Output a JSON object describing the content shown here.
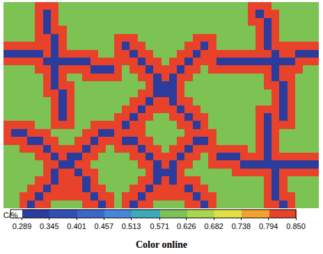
{
  "chart_data": {
    "type": "heatmap",
    "xlim": [
      -0.5,
      39.5
    ],
    "ylim": [
      25.5,
      -0.5
    ],
    "tick_labels": false,
    "cells": [
      [
        0.6,
        0.6,
        0.6,
        0.6,
        0.85,
        0.85,
        0.85,
        0.6,
        0.6,
        0.6,
        0.6,
        0.6,
        0.6,
        0.6,
        0.6,
        0.6,
        0.6,
        0.6,
        0.6,
        0.6,
        0.6,
        0.6,
        0.6,
        0.6,
        0.6,
        0.6,
        0.6,
        0.6,
        0.6,
        0.6,
        0.6,
        0.85,
        0.85,
        0.85,
        0.6,
        0.6,
        0.6,
        0.6,
        0.6,
        0.6
      ],
      [
        0.6,
        0.6,
        0.6,
        0.6,
        0.85,
        0.29,
        0.85,
        0.6,
        0.6,
        0.6,
        0.6,
        0.6,
        0.6,
        0.6,
        0.6,
        0.6,
        0.6,
        0.6,
        0.6,
        0.6,
        0.6,
        0.6,
        0.6,
        0.6,
        0.6,
        0.6,
        0.6,
        0.6,
        0.6,
        0.6,
        0.6,
        0.85,
        0.29,
        0.85,
        0.85,
        0.6,
        0.6,
        0.6,
        0.6,
        0.6
      ],
      [
        0.6,
        0.6,
        0.6,
        0.6,
        0.85,
        0.29,
        0.85,
        0.6,
        0.6,
        0.6,
        0.6,
        0.6,
        0.6,
        0.6,
        0.6,
        0.6,
        0.6,
        0.6,
        0.6,
        0.6,
        0.6,
        0.6,
        0.6,
        0.6,
        0.6,
        0.6,
        0.6,
        0.6,
        0.6,
        0.6,
        0.6,
        0.85,
        0.85,
        0.29,
        0.85,
        0.6,
        0.6,
        0.6,
        0.6,
        0.6
      ],
      [
        0.6,
        0.6,
        0.6,
        0.6,
        0.85,
        0.29,
        0.85,
        0.85,
        0.6,
        0.6,
        0.6,
        0.6,
        0.6,
        0.6,
        0.6,
        0.6,
        0.6,
        0.6,
        0.6,
        0.6,
        0.6,
        0.6,
        0.6,
        0.6,
        0.6,
        0.6,
        0.6,
        0.6,
        0.6,
        0.6,
        0.6,
        0.6,
        0.85,
        0.29,
        0.85,
        0.6,
        0.6,
        0.6,
        0.6,
        0.6
      ],
      [
        0.6,
        0.6,
        0.6,
        0.6,
        0.85,
        0.85,
        0.29,
        0.85,
        0.6,
        0.6,
        0.6,
        0.6,
        0.6,
        0.6,
        0.85,
        0.85,
        0.85,
        0.6,
        0.6,
        0.6,
        0.6,
        0.6,
        0.6,
        0.6,
        0.85,
        0.85,
        0.85,
        0.6,
        0.6,
        0.6,
        0.6,
        0.6,
        0.85,
        0.29,
        0.85,
        0.6,
        0.6,
        0.6,
        0.6,
        0.6
      ],
      [
        0.85,
        0.85,
        0.85,
        0.85,
        0.85,
        0.85,
        0.29,
        0.85,
        0.6,
        0.6,
        0.6,
        0.6,
        0.6,
        0.6,
        0.85,
        0.29,
        0.85,
        0.85,
        0.6,
        0.6,
        0.6,
        0.6,
        0.6,
        0.85,
        0.85,
        0.29,
        0.85,
        0.6,
        0.6,
        0.6,
        0.6,
        0.6,
        0.85,
        0.29,
        0.85,
        0.85,
        0.85,
        0.85,
        0.85,
        0.85
      ],
      [
        0.29,
        0.29,
        0.29,
        0.29,
        0.29,
        0.85,
        0.29,
        0.85,
        0.85,
        0.85,
        0.85,
        0.85,
        0.6,
        0.6,
        0.85,
        0.85,
        0.29,
        0.85,
        0.85,
        0.6,
        0.6,
        0.6,
        0.85,
        0.85,
        0.29,
        0.85,
        0.85,
        0.85,
        0.85,
        0.85,
        0.85,
        0.85,
        0.85,
        0.85,
        0.29,
        0.85,
        0.85,
        0.29,
        0.29,
        0.29
      ],
      [
        0.85,
        0.85,
        0.85,
        0.85,
        0.85,
        0.29,
        0.29,
        0.29,
        0.29,
        0.29,
        0.29,
        0.85,
        0.85,
        0.85,
        0.85,
        0.85,
        0.85,
        0.29,
        0.85,
        0.85,
        0.6,
        0.85,
        0.85,
        0.29,
        0.85,
        0.85,
        0.85,
        0.29,
        0.29,
        0.29,
        0.29,
        0.29,
        0.29,
        0.29,
        0.29,
        0.29,
        0.29,
        0.85,
        0.85,
        0.85
      ],
      [
        0.6,
        0.6,
        0.6,
        0.6,
        0.85,
        0.85,
        0.29,
        0.85,
        0.85,
        0.85,
        0.85,
        0.29,
        0.29,
        0.29,
        0.85,
        0.6,
        0.85,
        0.85,
        0.29,
        0.85,
        0.85,
        0.85,
        0.29,
        0.85,
        0.85,
        0.6,
        0.85,
        0.85,
        0.85,
        0.85,
        0.85,
        0.85,
        0.85,
        0.85,
        0.29,
        0.85,
        0.85,
        0.85,
        0.6,
        0.6
      ],
      [
        0.6,
        0.6,
        0.6,
        0.6,
        0.6,
        0.85,
        0.29,
        0.85,
        0.6,
        0.6,
        0.85,
        0.85,
        0.85,
        0.85,
        0.85,
        0.6,
        0.6,
        0.85,
        0.85,
        0.29,
        0.85,
        0.29,
        0.85,
        0.85,
        0.6,
        0.6,
        0.6,
        0.6,
        0.6,
        0.6,
        0.6,
        0.6,
        0.6,
        0.85,
        0.29,
        0.85,
        0.85,
        0.6,
        0.6,
        0.6
      ],
      [
        0.6,
        0.6,
        0.6,
        0.6,
        0.6,
        0.85,
        0.29,
        0.85,
        0.85,
        0.6,
        0.6,
        0.6,
        0.6,
        0.6,
        0.6,
        0.6,
        0.6,
        0.6,
        0.85,
        0.29,
        0.29,
        0.29,
        0.85,
        0.6,
        0.6,
        0.6,
        0.6,
        0.6,
        0.6,
        0.6,
        0.6,
        0.6,
        0.6,
        0.85,
        0.85,
        0.29,
        0.85,
        0.6,
        0.6,
        0.6
      ],
      [
        0.6,
        0.6,
        0.6,
        0.6,
        0.6,
        0.85,
        0.85,
        0.29,
        0.85,
        0.6,
        0.6,
        0.6,
        0.6,
        0.6,
        0.6,
        0.6,
        0.6,
        0.85,
        0.85,
        0.29,
        0.29,
        0.29,
        0.85,
        0.6,
        0.6,
        0.6,
        0.6,
        0.6,
        0.6,
        0.6,
        0.6,
        0.6,
        0.6,
        0.6,
        0.85,
        0.29,
        0.85,
        0.6,
        0.6,
        0.6
      ],
      [
        0.6,
        0.6,
        0.6,
        0.6,
        0.6,
        0.6,
        0.85,
        0.29,
        0.85,
        0.6,
        0.6,
        0.6,
        0.6,
        0.6,
        0.6,
        0.6,
        0.85,
        0.85,
        0.29,
        0.85,
        0.85,
        0.29,
        0.85,
        0.85,
        0.6,
        0.6,
        0.6,
        0.6,
        0.6,
        0.6,
        0.6,
        0.6,
        0.6,
        0.6,
        0.85,
        0.29,
        0.85,
        0.6,
        0.6,
        0.6
      ],
      [
        0.6,
        0.6,
        0.6,
        0.6,
        0.6,
        0.6,
        0.85,
        0.29,
        0.85,
        0.6,
        0.6,
        0.6,
        0.6,
        0.6,
        0.6,
        0.85,
        0.85,
        0.29,
        0.85,
        0.85,
        0.85,
        0.85,
        0.29,
        0.85,
        0.85,
        0.6,
        0.6,
        0.6,
        0.6,
        0.6,
        0.6,
        0.6,
        0.85,
        0.85,
        0.85,
        0.29,
        0.85,
        0.6,
        0.6,
        0.6
      ],
      [
        0.6,
        0.6,
        0.6,
        0.6,
        0.6,
        0.6,
        0.85,
        0.29,
        0.85,
        0.6,
        0.6,
        0.6,
        0.6,
        0.6,
        0.85,
        0.85,
        0.29,
        0.85,
        0.85,
        0.6,
        0.6,
        0.85,
        0.85,
        0.29,
        0.85,
        0.85,
        0.6,
        0.6,
        0.6,
        0.6,
        0.6,
        0.6,
        0.85,
        0.29,
        0.85,
        0.29,
        0.85,
        0.6,
        0.6,
        0.6
      ],
      [
        0.85,
        0.85,
        0.85,
        0.85,
        0.6,
        0.6,
        0.85,
        0.85,
        0.85,
        0.6,
        0.6,
        0.85,
        0.85,
        0.85,
        0.85,
        0.29,
        0.85,
        0.85,
        0.6,
        0.6,
        0.6,
        0.6,
        0.85,
        0.85,
        0.29,
        0.85,
        0.6,
        0.6,
        0.6,
        0.6,
        0.6,
        0.6,
        0.85,
        0.29,
        0.85,
        0.85,
        0.85,
        0.6,
        0.6,
        0.6
      ],
      [
        0.85,
        0.29,
        0.29,
        0.85,
        0.85,
        0.85,
        0.6,
        0.6,
        0.6,
        0.6,
        0.85,
        0.85,
        0.29,
        0.29,
        0.85,
        0.85,
        0.85,
        0.85,
        0.6,
        0.6,
        0.6,
        0.6,
        0.6,
        0.85,
        0.85,
        0.85,
        0.85,
        0.6,
        0.6,
        0.6,
        0.6,
        0.6,
        0.85,
        0.29,
        0.85,
        0.6,
        0.6,
        0.6,
        0.6,
        0.6
      ],
      [
        0.85,
        0.85,
        0.85,
        0.29,
        0.29,
        0.85,
        0.85,
        0.6,
        0.6,
        0.85,
        0.85,
        0.29,
        0.85,
        0.85,
        0.85,
        0.29,
        0.29,
        0.85,
        0.85,
        0.6,
        0.6,
        0.6,
        0.85,
        0.85,
        0.29,
        0.29,
        0.85,
        0.6,
        0.6,
        0.6,
        0.6,
        0.6,
        0.85,
        0.29,
        0.85,
        0.6,
        0.6,
        0.6,
        0.6,
        0.6
      ],
      [
        0.6,
        0.6,
        0.85,
        0.85,
        0.85,
        0.29,
        0.85,
        0.85,
        0.85,
        0.85,
        0.29,
        0.85,
        0.85,
        0.6,
        0.85,
        0.85,
        0.85,
        0.29,
        0.85,
        0.85,
        0.6,
        0.85,
        0.85,
        0.29,
        0.85,
        0.85,
        0.85,
        0.85,
        0.85,
        0.85,
        0.85,
        0.6,
        0.85,
        0.29,
        0.85,
        0.6,
        0.6,
        0.6,
        0.6,
        0.6
      ],
      [
        0.6,
        0.6,
        0.6,
        0.6,
        0.85,
        0.85,
        0.29,
        0.85,
        0.29,
        0.29,
        0.85,
        0.85,
        0.6,
        0.6,
        0.6,
        0.6,
        0.85,
        0.85,
        0.29,
        0.85,
        0.85,
        0.85,
        0.29,
        0.85,
        0.85,
        0.6,
        0.85,
        0.29,
        0.29,
        0.29,
        0.85,
        0.85,
        0.85,
        0.29,
        0.85,
        0.85,
        0.85,
        0.85,
        0.85,
        0.85
      ],
      [
        0.6,
        0.6,
        0.6,
        0.6,
        0.6,
        0.85,
        0.85,
        0.29,
        0.29,
        0.85,
        0.85,
        0.6,
        0.6,
        0.6,
        0.6,
        0.6,
        0.6,
        0.85,
        0.85,
        0.29,
        0.85,
        0.29,
        0.85,
        0.85,
        0.6,
        0.6,
        0.85,
        0.85,
        0.85,
        0.85,
        0.29,
        0.29,
        0.29,
        0.29,
        0.29,
        0.29,
        0.29,
        0.29,
        0.29,
        0.29
      ],
      [
        0.6,
        0.6,
        0.6,
        0.6,
        0.6,
        0.85,
        0.29,
        0.85,
        0.85,
        0.29,
        0.85,
        0.85,
        0.6,
        0.6,
        0.6,
        0.6,
        0.6,
        0.6,
        0.85,
        0.29,
        0.29,
        0.29,
        0.85,
        0.6,
        0.6,
        0.6,
        0.6,
        0.6,
        0.6,
        0.85,
        0.85,
        0.85,
        0.85,
        0.85,
        0.29,
        0.85,
        0.85,
        0.85,
        0.85,
        0.85
      ],
      [
        0.6,
        0.6,
        0.6,
        0.6,
        0.85,
        0.85,
        0.29,
        0.85,
        0.85,
        0.85,
        0.29,
        0.85,
        0.6,
        0.6,
        0.6,
        0.6,
        0.6,
        0.85,
        0.85,
        0.29,
        0.85,
        0.29,
        0.85,
        0.85,
        0.85,
        0.6,
        0.6,
        0.6,
        0.6,
        0.6,
        0.6,
        0.6,
        0.6,
        0.85,
        0.29,
        0.85,
        0.6,
        0.6,
        0.6,
        0.6
      ],
      [
        0.6,
        0.6,
        0.6,
        0.85,
        0.85,
        0.29,
        0.85,
        0.85,
        0.85,
        0.85,
        0.29,
        0.85,
        0.85,
        0.6,
        0.6,
        0.6,
        0.85,
        0.85,
        0.29,
        0.85,
        0.85,
        0.85,
        0.85,
        0.29,
        0.85,
        0.85,
        0.6,
        0.6,
        0.6,
        0.6,
        0.6,
        0.6,
        0.6,
        0.85,
        0.29,
        0.85,
        0.6,
        0.6,
        0.6,
        0.6
      ],
      [
        0.6,
        0.6,
        0.85,
        0.85,
        0.29,
        0.85,
        0.85,
        0.85,
        0.85,
        0.85,
        0.85,
        0.29,
        0.85,
        0.85,
        0.6,
        0.85,
        0.85,
        0.29,
        0.85,
        0.85,
        0.85,
        0.85,
        0.85,
        0.85,
        0.29,
        0.85,
        0.85,
        0.6,
        0.6,
        0.6,
        0.6,
        0.6,
        0.6,
        0.85,
        0.29,
        0.85,
        0.85,
        0.6,
        0.6,
        0.6
      ],
      [
        0.6,
        0.6,
        0.85,
        0.29,
        0.85,
        0.85,
        0.6,
        0.6,
        0.6,
        0.6,
        0.85,
        0.85,
        0.29,
        0.85,
        0.6,
        0.85,
        0.29,
        0.85,
        0.85,
        0.6,
        0.6,
        0.6,
        0.6,
        0.85,
        0.85,
        0.29,
        0.85,
        0.6,
        0.6,
        0.6,
        0.6,
        0.6,
        0.6,
        0.85,
        0.85,
        0.29,
        0.85,
        0.6,
        0.6,
        0.6
      ]
    ],
    "colorbar": {
      "title": "C/%",
      "range": [
        0.289,
        0.85
      ],
      "ticks": [
        0.289,
        0.345,
        0.401,
        0.457,
        0.513,
        0.571,
        0.626,
        0.682,
        0.738,
        0.794,
        {
          "value": 0.85,
          "label": "0.850"
        }
      ]
    },
    "caption": "Color online"
  }
}
